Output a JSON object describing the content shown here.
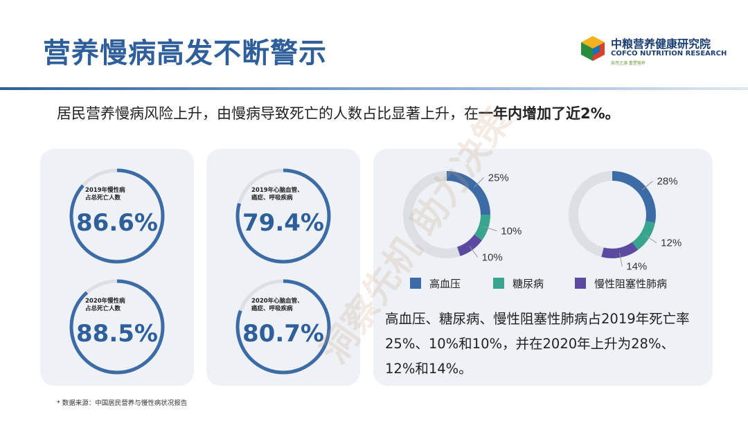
{
  "header": {
    "title": "营养慢病高发不断警示",
    "logo_cn": "中粮营养健康研究院",
    "logo_en": "COFCO NUTRITION RESEARCH",
    "logo_sub": "自然之源 重塑营养"
  },
  "lead": {
    "text_plain": "居民营养慢病风险上升，由慢病导致死亡的人数占比显著上升，在",
    "text_bold": "一年内增加了近2%。"
  },
  "rings": [
    {
      "label": "2019年慢性病\n占总死亡人数",
      "value_text": "86.6%",
      "value": 86.6
    },
    {
      "label": "2019年心脑血管、\n癌症、呼吸疾病",
      "value_text": "79.4%",
      "value": 79.4
    },
    {
      "label": "2020年慢性病\n占总死亡人数",
      "value_text": "88.5%",
      "value": 88.5
    },
    {
      "label": "2020年心脑血管、\n癌症、呼吸疾病",
      "value_text": "80.7%",
      "value": 80.7
    }
  ],
  "chart_data": {
    "type": "pie",
    "donut": true,
    "categories": [
      "高血压",
      "糖尿病",
      "慢性阻塞性肺病"
    ],
    "colors": [
      "#3d6ba5",
      "#3aa58e",
      "#5b4a9f"
    ],
    "series": [
      {
        "values": [
          25,
          10,
          10
        ],
        "labels": [
          "25%",
          "10%",
          "10%"
        ]
      },
      {
        "values": [
          28,
          12,
          14
        ],
        "labels": [
          "28%",
          "12%",
          "14%"
        ]
      }
    ],
    "legend": "bottom"
  },
  "description": "高血压、糖尿病、慢性阻塞性肺病占2019年死亡率25%、10%和10%，并在2020年上升为28%、12%和14%。",
  "source": "* 数据来源：中国居民营养与慢性病状况报告",
  "watermark": "洞察先机 助力决策"
}
